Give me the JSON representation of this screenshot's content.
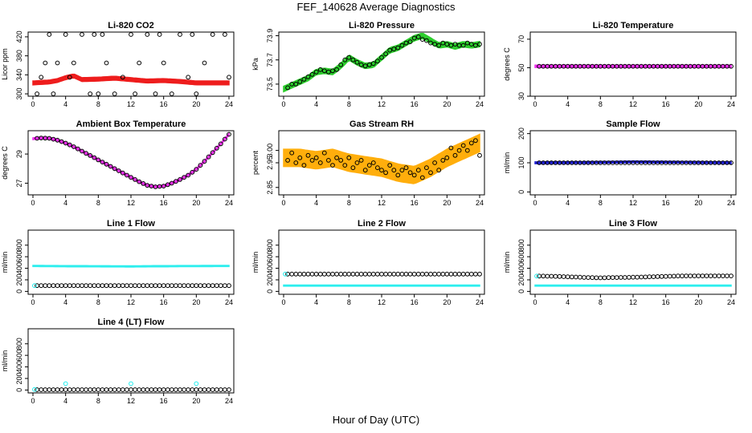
{
  "title": "FEF_140628  Average Diagnostics",
  "xlabel": "Hour of Day (UTC)",
  "colors": {
    "black": "#000000",
    "red": "#ee1111",
    "green": "#22cc22",
    "magenta": "#ee22ee",
    "orange": "#ffaa00",
    "blue": "#1111cc",
    "cyan": "#22eeee"
  },
  "chart_data": [
    {
      "type": "scatter",
      "title": "Li-820 CO2",
      "ylabel": "Licor ppm",
      "xlim": [
        0,
        24
      ],
      "ylim": [
        295,
        430
      ],
      "xticks": [
        "0",
        "4",
        "8",
        "12",
        "16",
        "20",
        "24"
      ],
      "yticks": [
        "300",
        "340",
        "380",
        "420"
      ],
      "series": [
        {
          "kind": "band",
          "color": "red",
          "x": [
            0,
            2,
            3,
            4,
            5,
            6,
            8,
            10,
            12,
            14,
            16,
            18,
            20,
            22,
            24
          ],
          "y": [
            323,
            325,
            328,
            334,
            338,
            330,
            331,
            333,
            330,
            327,
            328,
            326,
            323,
            323,
            323
          ],
          "spread": 4
        },
        {
          "kind": "points",
          "color": "black",
          "label": "open circles",
          "x": [
            0.5,
            1,
            1.5,
            2,
            2.5,
            3,
            4,
            4.5,
            5,
            6,
            7,
            7.5,
            8,
            8.5,
            9,
            10,
            11,
            12,
            12.5,
            13,
            14,
            15,
            15.5,
            16,
            17,
            18,
            19,
            19.5,
            20,
            21,
            22,
            23.5,
            24
          ],
          "y": [
            300,
            335,
            365,
            425,
            300,
            365,
            425,
            335,
            365,
            425,
            300,
            425,
            300,
            425,
            365,
            300,
            335,
            425,
            300,
            365,
            425,
            300,
            425,
            365,
            300,
            425,
            335,
            425,
            300,
            365,
            425,
            425,
            335
          ]
        }
      ]
    },
    {
      "type": "scatter",
      "title": "Li-820 Pressure",
      "ylabel": "kPa",
      "xlim": [
        0,
        24
      ],
      "ylim": [
        73.4,
        73.93
      ],
      "xticks": [
        "0",
        "4",
        "8",
        "12",
        "16",
        "20",
        "24"
      ],
      "yticks": [
        "73.5",
        "73.7",
        "73.9"
      ],
      "series": [
        {
          "kind": "band",
          "color": "green",
          "x": [
            0,
            1,
            2,
            3,
            4,
            5,
            6,
            7,
            8,
            9,
            10,
            11,
            12,
            13,
            14,
            15,
            16,
            17,
            18,
            19,
            20,
            21,
            22,
            23,
            24
          ],
          "y": [
            73.46,
            73.49,
            73.52,
            73.55,
            73.6,
            73.61,
            73.6,
            73.65,
            73.72,
            73.68,
            73.65,
            73.66,
            73.72,
            73.78,
            73.8,
            73.84,
            73.88,
            73.9,
            73.86,
            73.82,
            73.83,
            73.81,
            73.83,
            73.82,
            73.83
          ],
          "spread": 0.022
        },
        {
          "kind": "points",
          "color": "black",
          "x": [
            0.5,
            1,
            1.5,
            2,
            2.5,
            3,
            3.5,
            4,
            4.5,
            5,
            5.5,
            6,
            6.5,
            7,
            7.5,
            8,
            8.5,
            9,
            9.5,
            10,
            10.5,
            11,
            11.5,
            12,
            12.5,
            13,
            13.5,
            14,
            14.5,
            15,
            15.5,
            16,
            16.5,
            17,
            17.5,
            18,
            18.5,
            19,
            19.5,
            20,
            20.5,
            21,
            21.5,
            22,
            22.5,
            23,
            23.5,
            24
          ],
          "y": [
            73.47,
            73.5,
            73.5,
            73.52,
            73.54,
            73.56,
            73.58,
            73.6,
            73.62,
            73.61,
            73.6,
            73.61,
            73.62,
            73.66,
            73.7,
            73.72,
            73.7,
            73.68,
            73.66,
            73.65,
            73.66,
            73.67,
            73.69,
            73.72,
            73.75,
            73.78,
            73.79,
            73.8,
            73.82,
            73.84,
            73.85,
            73.88,
            73.89,
            73.87,
            73.86,
            73.84,
            73.83,
            73.82,
            73.84,
            73.83,
            73.82,
            73.83,
            73.82,
            73.82,
            73.84,
            73.83,
            73.82,
            73.83
          ]
        }
      ]
    },
    {
      "type": "scatter",
      "title": "Li-820 Temperature",
      "ylabel": "degrees C",
      "xlim": [
        0,
        24
      ],
      "ylim": [
        30,
        75
      ],
      "xticks": [
        "0",
        "4",
        "8",
        "12",
        "16",
        "20",
        "24"
      ],
      "yticks": [
        "30",
        "50",
        "70"
      ],
      "series": [
        {
          "kind": "band",
          "color": "magenta",
          "x": [
            0,
            24
          ],
          "y": [
            51,
            51
          ],
          "spread": 0.8
        },
        {
          "kind": "points",
          "color": "black",
          "step": 0.5,
          "xfrom": 0.5,
          "xto": 24,
          "yconst": 51
        }
      ]
    },
    {
      "type": "scatter",
      "title": "Ambient Box Temperature",
      "ylabel": "degrees C",
      "xlim": [
        0,
        24
      ],
      "ylim": [
        26.2,
        30.6
      ],
      "xticks": [
        "0",
        "4",
        "8",
        "12",
        "16",
        "20",
        "24"
      ],
      "yticks": [
        "27",
        "29"
      ],
      "series": [
        {
          "kind": "band",
          "color": "magenta",
          "x": [
            0,
            1,
            2,
            3,
            4,
            5,
            6,
            7,
            8,
            9,
            10,
            11,
            12,
            13,
            14,
            15,
            16,
            17,
            18,
            19,
            20,
            21,
            22,
            23,
            24
          ],
          "y": [
            30.05,
            30.1,
            30.08,
            29.95,
            29.75,
            29.5,
            29.2,
            28.9,
            28.6,
            28.3,
            28.0,
            27.7,
            27.4,
            27.1,
            26.85,
            26.75,
            26.8,
            27.0,
            27.25,
            27.55,
            27.95,
            28.5,
            29.1,
            29.7,
            30.35
          ],
          "spread": 0.06
        },
        {
          "kind": "points",
          "color": "black",
          "follow": true,
          "step": 0.5,
          "xfrom": 0.5,
          "xto": 24
        }
      ]
    },
    {
      "type": "scatter",
      "title": "Gas Stream RH",
      "ylabel": "percent",
      "xlim": [
        0,
        24
      ],
      "ylim": [
        2.82,
        3.08
      ],
      "xticks": [
        "0",
        "4",
        "8",
        "12",
        "16",
        "20",
        "24"
      ],
      "yticks": [
        "2.85",
        "2.95",
        "3.00"
      ],
      "series": [
        {
          "kind": "band",
          "color": "orange",
          "x": [
            0,
            2,
            4,
            6,
            8,
            10,
            12,
            14,
            16,
            18,
            20,
            22,
            24
          ],
          "y": [
            2.97,
            2.97,
            2.96,
            2.97,
            2.95,
            2.94,
            2.93,
            2.91,
            2.9,
            2.93,
            2.97,
            3.0,
            3.03
          ],
          "spread": 0.035
        },
        {
          "kind": "points",
          "color": "black",
          "x": [
            0.5,
            1,
            1.5,
            2,
            2.5,
            3,
            3.5,
            4,
            4.5,
            5,
            5.5,
            6,
            6.5,
            7,
            7.5,
            8,
            8.5,
            9,
            9.5,
            10,
            10.5,
            11,
            11.5,
            12,
            12.5,
            13,
            13.5,
            14,
            14.5,
            15,
            15.5,
            16,
            16.5,
            17,
            17.5,
            18,
            18.5,
            19,
            19.5,
            20,
            20.5,
            21,
            21.5,
            22,
            22.5,
            23,
            23.5,
            24
          ],
          "y": [
            2.96,
            2.99,
            2.95,
            2.97,
            2.94,
            2.98,
            2.96,
            2.97,
            2.95,
            2.99,
            2.96,
            2.94,
            2.97,
            2.96,
            2.94,
            2.97,
            2.93,
            2.95,
            2.96,
            2.92,
            2.94,
            2.95,
            2.93,
            2.92,
            2.91,
            2.94,
            2.92,
            2.9,
            2.92,
            2.93,
            2.91,
            2.9,
            2.92,
            2.89,
            2.93,
            2.91,
            2.95,
            2.92,
            2.96,
            2.97,
            3.01,
            2.98,
            3.0,
            3.02,
            3.0,
            3.03,
            3.04,
            2.98
          ]
        }
      ]
    },
    {
      "type": "scatter",
      "title": "Sample Flow",
      "ylabel": "ml/min",
      "xlim": [
        0,
        24
      ],
      "ylim": [
        -10,
        210
      ],
      "xticks": [
        "0",
        "4",
        "8",
        "12",
        "16",
        "20",
        "24"
      ],
      "yticks": [
        "0",
        "100",
        "200"
      ],
      "series": [
        {
          "kind": "band",
          "color": "blue",
          "x": [
            0,
            6,
            12,
            18,
            24
          ],
          "y": [
            100,
            101,
            103,
            102,
            100
          ],
          "spread": 3
        },
        {
          "kind": "points",
          "color": "black",
          "step": 0.5,
          "xfrom": 0.5,
          "xto": 24,
          "yconst": 100
        }
      ]
    },
    {
      "type": "scatter",
      "title": "Line 1 Flow",
      "ylabel": "ml/min",
      "xlim": [
        0,
        24
      ],
      "ylim": [
        -50,
        1060
      ],
      "xticks": [
        "0",
        "4",
        "8",
        "12",
        "16",
        "20",
        "24"
      ],
      "yticks": [
        "0",
        "200",
        "400",
        "600",
        "800"
      ],
      "series": [
        {
          "kind": "band",
          "color": "cyan",
          "x": [
            0,
            6,
            12,
            18,
            24
          ],
          "y": [
            440,
            435,
            432,
            438,
            440
          ],
          "spread": 10
        },
        {
          "kind": "points",
          "color": "black",
          "step": 0.5,
          "xfrom": 0.5,
          "xto": 24,
          "yconst": 100
        },
        {
          "kind": "points",
          "color": "cyan",
          "x": [
            0.2
          ],
          "y": [
            100
          ]
        }
      ]
    },
    {
      "type": "scatter",
      "title": "Line 2 Flow",
      "ylabel": "ml/min",
      "xlim": [
        0,
        24
      ],
      "ylim": [
        -50,
        1060
      ],
      "xticks": [
        "0",
        "4",
        "8",
        "12",
        "16",
        "20",
        "24"
      ],
      "yticks": [
        "0",
        "200",
        "400",
        "600",
        "800"
      ],
      "series": [
        {
          "kind": "band",
          "color": "cyan",
          "x": [
            0,
            24
          ],
          "y": [
            100,
            100
          ],
          "spread": 10
        },
        {
          "kind": "points",
          "color": "black",
          "step": 0.5,
          "xfrom": 0.5,
          "xto": 24,
          "yconst": 300
        },
        {
          "kind": "points",
          "color": "cyan",
          "x": [
            0.2
          ],
          "y": [
            300
          ]
        }
      ]
    },
    {
      "type": "scatter",
      "title": "Line 3 Flow",
      "ylabel": "ml/min",
      "xlim": [
        0,
        24
      ],
      "ylim": [
        -50,
        1060
      ],
      "xticks": [
        "0",
        "4",
        "8",
        "12",
        "16",
        "20",
        "24"
      ],
      "yticks": [
        "0",
        "200",
        "400",
        "600",
        "800"
      ],
      "series": [
        {
          "kind": "band",
          "color": "cyan",
          "x": [
            0,
            24
          ],
          "y": [
            100,
            100
          ],
          "spread": 10
        },
        {
          "kind": "points",
          "color": "black",
          "x": [
            0.5,
            1,
            1.5,
            2,
            2.5,
            3,
            3.5,
            4,
            4.5,
            5,
            5.5,
            6,
            6.5,
            7,
            7.5,
            8,
            8.5,
            9,
            9.5,
            10,
            10.5,
            11,
            11.5,
            12,
            12.5,
            13,
            13.5,
            14,
            14.5,
            15,
            15.5,
            16,
            16.5,
            17,
            17.5,
            18,
            18.5,
            19,
            19.5,
            20,
            20.5,
            21,
            21.5,
            22,
            22.5,
            23,
            23.5,
            24
          ],
          "y": [
            265,
            265,
            262,
            262,
            260,
            258,
            255,
            252,
            250,
            248,
            245,
            242,
            240,
            238,
            236,
            235,
            236,
            238,
            240,
            240,
            242,
            242,
            243,
            245,
            246,
            248,
            250,
            252,
            254,
            256,
            258,
            260,
            262,
            264,
            266,
            266,
            268,
            268,
            268,
            268,
            268,
            268,
            268,
            268,
            268,
            268,
            268,
            268
          ]
        },
        {
          "kind": "points",
          "color": "cyan",
          "x": [
            0.2
          ],
          "y": [
            265
          ]
        }
      ]
    },
    {
      "type": "scatter",
      "title": "Line 4 (LT) Flow",
      "ylabel": "ml/min",
      "xlim": [
        0,
        24
      ],
      "ylim": [
        -50,
        1060
      ],
      "xticks": [
        "0",
        "4",
        "8",
        "12",
        "16",
        "20",
        "24"
      ],
      "yticks": [
        "0",
        "200",
        "400",
        "600",
        "800"
      ],
      "series": [
        {
          "kind": "points",
          "color": "black",
          "step": 0.5,
          "xfrom": 0.5,
          "xto": 24,
          "yconst": 5
        },
        {
          "kind": "points",
          "color": "cyan",
          "x": [
            0.2,
            4,
            12,
            20
          ],
          "y": [
            10,
            110,
            110,
            110
          ]
        }
      ]
    }
  ]
}
